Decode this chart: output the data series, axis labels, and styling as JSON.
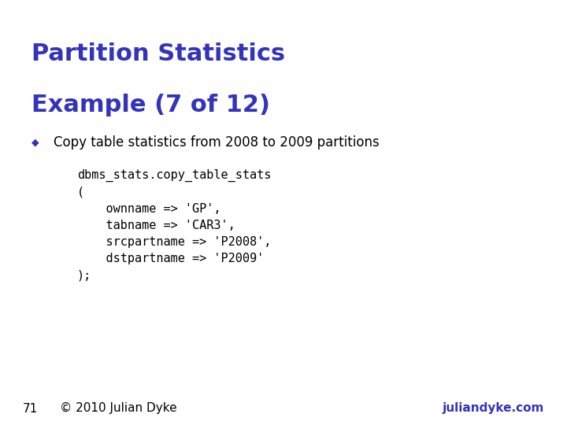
{
  "title_line1": "Partition Statistics",
  "title_line2": "Example (7 of 12)",
  "title_color": "#3333bb",
  "title_fontsize": 22,
  "bullet_text": "Copy table statistics from 2008 to 2009 partitions",
  "bullet_color": "#000000",
  "bullet_fontsize": 12,
  "bullet_marker_color": "#3333bb",
  "code_lines": [
    "dbms_stats.copy_table_stats",
    "(",
    "    ownname => 'GP',",
    "    tabname => 'CAR3',",
    "    srcpartname => 'P2008',",
    "    dstpartname => 'P2009'",
    ");"
  ],
  "code_fontsize": 11,
  "code_bg_color": "#d9d9d9",
  "code_text_color": "#000000",
  "footer_left_num": "71",
  "footer_left_text": "© 2010 Julian Dyke",
  "footer_right_text": "juliandyke.com",
  "footer_color": "#3333bb",
  "footer_fontsize": 11,
  "bg_color": "#ffffff"
}
